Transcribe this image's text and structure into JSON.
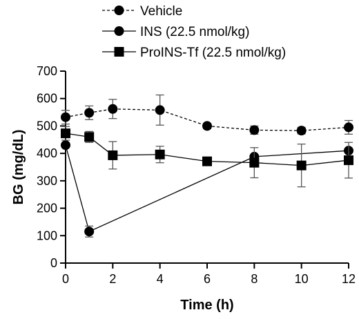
{
  "chart_data": {
    "type": "line",
    "title": "",
    "xlabel": "Time (h)",
    "ylabel": "BG (mg/dL)",
    "xlim": [
      0,
      12
    ],
    "ylim": [
      0,
      700
    ],
    "xticks": [
      0,
      2,
      4,
      6,
      8,
      10,
      12
    ],
    "yticks": [
      0,
      100,
      200,
      300,
      400,
      500,
      600,
      700
    ],
    "grid": false,
    "legend_position": "top",
    "series": [
      {
        "name": "Vehicle",
        "marker": "circle",
        "line_style": "dashed",
        "x": [
          0,
          1,
          2,
          4,
          6,
          8,
          10,
          12
        ],
        "values": [
          532,
          548,
          562,
          558,
          500,
          485,
          483,
          495
        ],
        "error": [
          25,
          25,
          35,
          55,
          10,
          15,
          12,
          25
        ]
      },
      {
        "name": "INS (22.5 nmol/kg)",
        "marker": "circle",
        "line_style": "solid",
        "x": [
          0,
          1,
          8,
          12
        ],
        "values": [
          430,
          115,
          388,
          410
        ],
        "error": [
          0,
          20,
          0,
          0
        ]
      },
      {
        "name": "ProINS-Tf (22.5 nmol/kg)",
        "marker": "square",
        "line_style": "solid",
        "x": [
          0,
          1,
          2,
          4,
          6,
          8,
          10,
          12
        ],
        "values": [
          473,
          460,
          393,
          396,
          371,
          366,
          356,
          375
        ],
        "error": [
          25,
          20,
          50,
          30,
          0,
          55,
          78,
          65
        ]
      }
    ]
  }
}
